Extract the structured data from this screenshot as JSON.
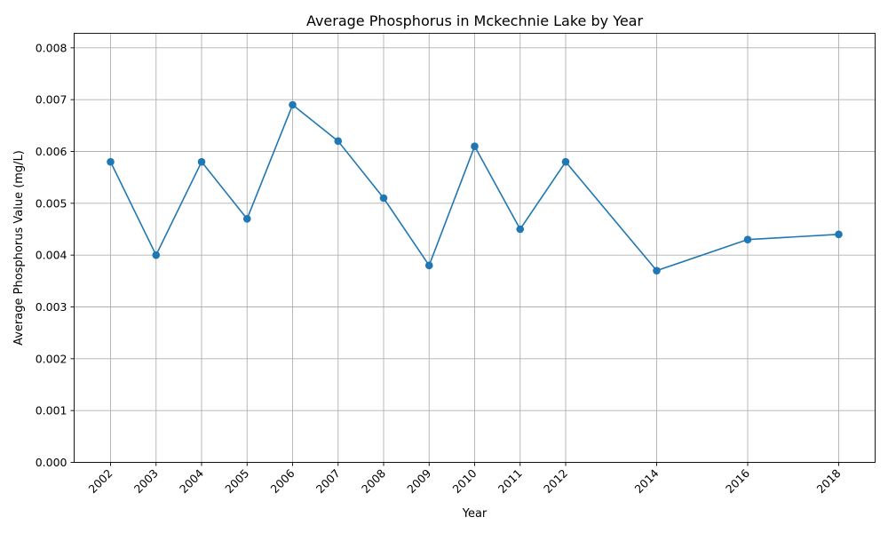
{
  "chart_data": {
    "type": "line",
    "title": "Average Phosphorus in Mckechnie Lake by Year",
    "xlabel": "Year",
    "ylabel": "Average Phosphorus Value (mg/L)",
    "x": [
      2002,
      2003,
      2004,
      2005,
      2006,
      2007,
      2008,
      2009,
      2010,
      2011,
      2012,
      2014,
      2016,
      2018
    ],
    "x_tick_labels": [
      "2002",
      "2003",
      "2004",
      "2005",
      "2006",
      "2007",
      "2008",
      "2009",
      "2010",
      "2011",
      "2012",
      "2014",
      "2016",
      "2018"
    ],
    "series": [
      {
        "values": [
          0.0058,
          0.004,
          0.0058,
          0.0047,
          0.0069,
          0.0062,
          0.0051,
          0.0038,
          0.0061,
          0.0045,
          0.0058,
          0.0037,
          0.0043,
          0.0044
        ],
        "color": "#1f77b4",
        "marker": "circle"
      }
    ],
    "y_ticks": [
      0,
      0.001,
      0.002,
      0.003,
      0.004,
      0.005,
      0.006,
      0.007,
      0.008
    ],
    "y_tick_labels": [
      "0.000",
      "0.001",
      "0.002",
      "0.003",
      "0.004",
      "0.005",
      "0.006",
      "0.007",
      "0.008"
    ],
    "xlim": [
      2001.2,
      2018.8
    ],
    "ylim": [
      0,
      0.00828
    ],
    "grid": true,
    "legend": "none",
    "x_tick_rotation_deg": 45
  }
}
